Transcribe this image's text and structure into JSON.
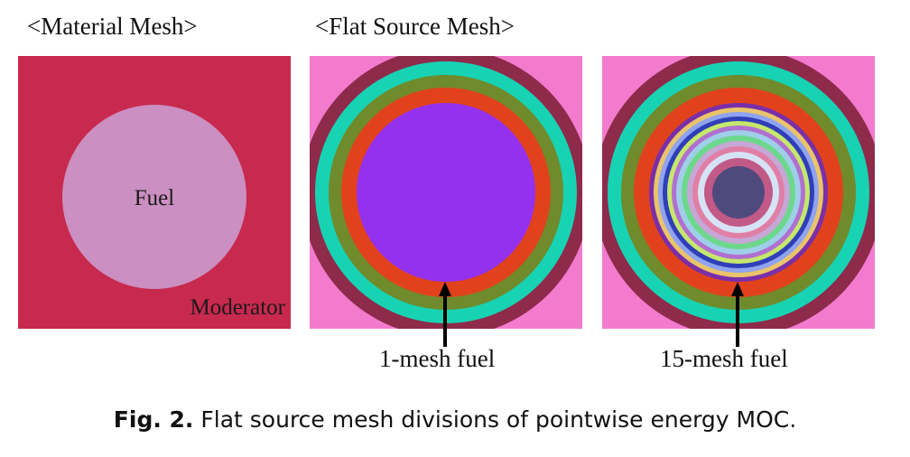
{
  "headings": {
    "material_mesh": "<Material Mesh>",
    "flat_source_mesh": "<Flat Source Mesh>"
  },
  "material_panel": {
    "fuel_label": "Fuel",
    "moderator_label": "Moderator",
    "moderator_color": "#c8294e",
    "fuel_color": "#cb8fc1"
  },
  "panel_1mesh": {
    "background_color": "#f27bce",
    "label": "1-mesh fuel",
    "ring_colors": [
      "#8e2a4a",
      "#17d3b4",
      "#6f8b2c",
      "#e2421b",
      "#9431ee"
    ]
  },
  "panel_15mesh": {
    "background_color": "#f27bce",
    "label": "15-mesh fuel",
    "ring_colors": [
      "#8e2a4a",
      "#17d3b4",
      "#6f8b2c",
      "#e2421b",
      "#7a2fa8",
      "#e9c46a",
      "#8fa3f0",
      "#2f3fb8",
      "#c5e86c",
      "#b070d0",
      "#9fcfe8",
      "#6cd88c",
      "#c6a7d6",
      "#e07fa6",
      "#d6e3f4",
      "#c25a87",
      "#4e4a7e"
    ]
  },
  "caption": {
    "label": "Fig. 2.",
    "text": " Flat source mesh divisions of pointwise energy MOC."
  }
}
